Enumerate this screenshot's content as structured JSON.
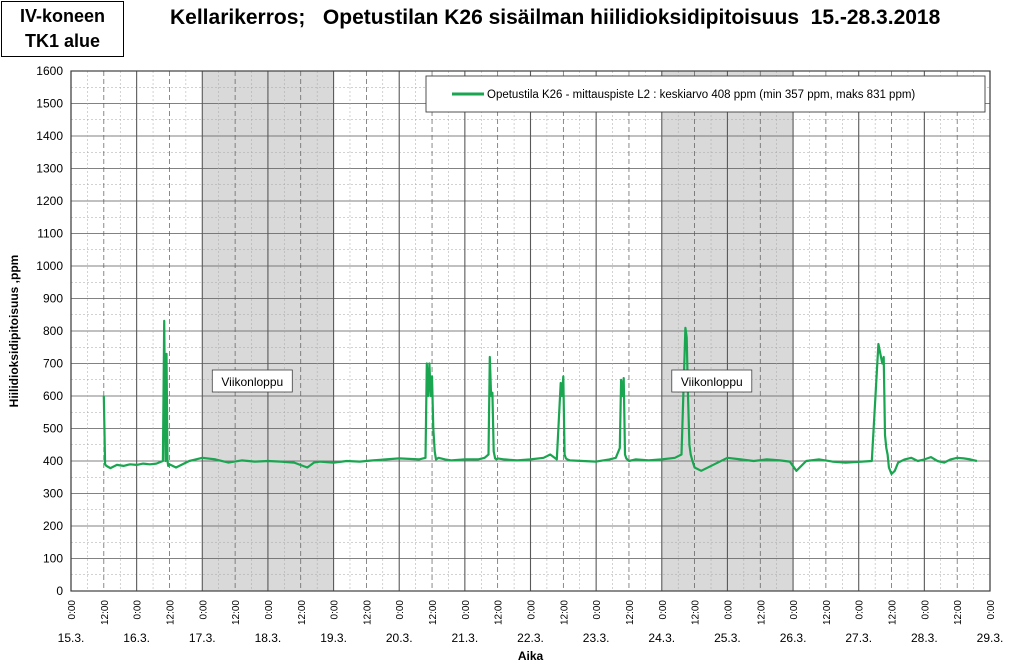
{
  "header": {
    "title": "Kellarikerros;   Opetustilan K26 sisäilman hiilidioksidipitoisuus  15.-28.3.2018",
    "corner_box": [
      "IV-koneen",
      "TK1 alue"
    ]
  },
  "colors": {
    "series": "#1aa650",
    "weekend_shade": "#d9d9d9",
    "grid_major": "#595959",
    "grid_minor": "#a6a6a6"
  },
  "chart_data": {
    "type": "line",
    "title": "Kellarikerros;   Opetustilan K26 sisäilman hiilidioksidipitoisuus  15.-28.3.2018",
    "xlabel": "Aika",
    "ylabel": "Hiilidioksidipitoisuus ,ppm",
    "ylim": [
      0,
      1600
    ],
    "ytick_step": 100,
    "yticks": [
      "0",
      "100",
      "200",
      "300",
      "400",
      "500",
      "600",
      "700",
      "800",
      "900",
      "1000",
      "1100",
      "1200",
      "1300",
      "1400",
      "1500",
      "1600"
    ],
    "xlim_days": [
      0,
      14
    ],
    "day_labels": [
      "15.3.",
      "16.3.",
      "17.3.",
      "18.3.",
      "19.3.",
      "20.3.",
      "21.3.",
      "22.3.",
      "23.3.",
      "24.3.",
      "25.3.",
      "26.3.",
      "27.3.",
      "28.3.",
      "29.3."
    ],
    "time_tick_labels": [
      "0:00",
      "12:00"
    ],
    "grid": true,
    "legend_position": "top-right",
    "weekend_shading": [
      {
        "start_day": 2,
        "end_day": 4,
        "label": "Viikonloppu"
      },
      {
        "start_day": 9,
        "end_day": 11,
        "label": "Viikonloppu"
      }
    ],
    "series": [
      {
        "name": "Opetustila K26 - mittauspiste L2 : keskiarvo 408 ppm (min 357 ppm, maks 831 ppm)",
        "x_days": [
          0.5,
          0.52,
          0.54,
          0.6,
          0.7,
          0.8,
          0.9,
          1.0,
          1.1,
          1.2,
          1.3,
          1.4,
          1.42,
          1.44,
          1.455,
          1.47,
          1.48,
          1.5,
          1.55,
          1.6,
          1.7,
          1.8,
          1.9,
          2.0,
          2.2,
          2.4,
          2.6,
          2.8,
          3.0,
          3.2,
          3.4,
          3.6,
          3.7,
          3.8,
          4.0,
          4.2,
          4.4,
          4.6,
          4.8,
          5.0,
          5.3,
          5.4,
          5.42,
          5.44,
          5.46,
          5.48,
          5.5,
          5.52,
          5.54,
          5.56,
          5.6,
          5.7,
          5.8,
          6.0,
          6.2,
          6.3,
          6.36,
          6.38,
          6.4,
          6.42,
          6.44,
          6.46,
          6.48,
          6.5,
          6.6,
          6.8,
          7.0,
          7.2,
          7.3,
          7.4,
          7.46,
          7.48,
          7.5,
          7.52,
          7.54,
          7.56,
          7.6,
          7.8,
          8.0,
          8.2,
          8.3,
          8.36,
          8.38,
          8.4,
          8.42,
          8.44,
          8.46,
          8.5,
          8.6,
          8.8,
          9.0,
          9.2,
          9.3,
          9.36,
          9.38,
          9.4,
          9.42,
          9.44,
          9.46,
          9.5,
          9.6,
          9.8,
          10.0,
          10.2,
          10.4,
          10.6,
          10.8,
          10.95,
          11.05,
          11.2,
          11.4,
          11.6,
          11.8,
          12.2,
          12.3,
          12.36,
          12.38,
          12.4,
          12.42,
          12.44,
          12.46,
          12.5,
          12.55,
          12.6,
          12.7,
          12.8,
          12.9,
          13.0,
          13.1,
          13.2,
          13.3,
          13.4,
          13.5,
          13.6,
          13.7,
          13.8
        ],
        "values": [
          600,
          390,
          385,
          378,
          388,
          385,
          390,
          388,
          392,
          390,
          392,
          400,
          831,
          400,
          730,
          400,
          385,
          390,
          385,
          380,
          390,
          400,
          405,
          410,
          405,
          395,
          402,
          398,
          400,
          398,
          395,
          380,
          395,
          398,
          395,
          400,
          398,
          402,
          405,
          408,
          405,
          410,
          700,
          600,
          700,
          600,
          660,
          500,
          430,
          405,
          410,
          405,
          402,
          405,
          405,
          410,
          420,
          720,
          600,
          610,
          430,
          408,
          405,
          408,
          405,
          402,
          405,
          410,
          420,
          405,
          640,
          600,
          660,
          420,
          408,
          405,
          402,
          400,
          398,
          405,
          410,
          440,
          650,
          600,
          655,
          420,
          408,
          400,
          405,
          402,
          405,
          410,
          420,
          810,
          780,
          600,
          450,
          420,
          405,
          380,
          370,
          390,
          410,
          405,
          400,
          405,
          402,
          398,
          370,
          400,
          405,
          398,
          395,
          400,
          760,
          700,
          720,
          480,
          440,
          420,
          380,
          360,
          370,
          395,
          405,
          410,
          400,
          405,
          412,
          400,
          395,
          405,
          410,
          408,
          405,
          400
        ]
      }
    ]
  }
}
